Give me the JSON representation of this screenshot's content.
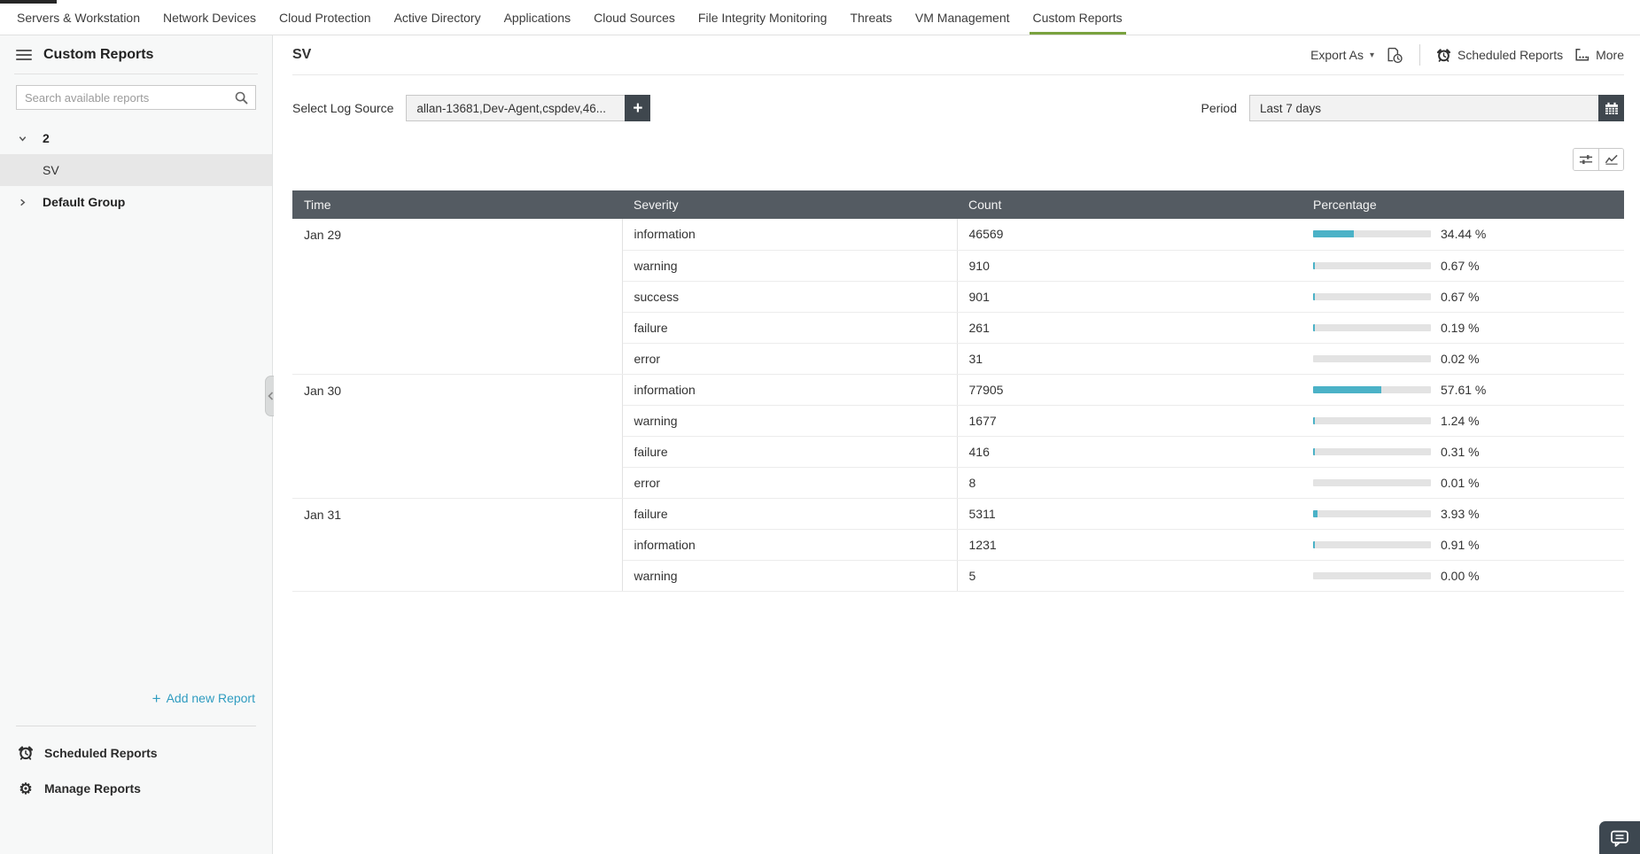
{
  "top_nav": {
    "tabs": [
      {
        "label": "Servers & Workstation",
        "active": false
      },
      {
        "label": "Network Devices",
        "active": false
      },
      {
        "label": "Cloud Protection",
        "active": false
      },
      {
        "label": "Active Directory",
        "active": false
      },
      {
        "label": "Applications",
        "active": false
      },
      {
        "label": "Cloud Sources",
        "active": false
      },
      {
        "label": "File Integrity Monitoring",
        "active": false
      },
      {
        "label": "Threats",
        "active": false
      },
      {
        "label": "VM Management",
        "active": false
      },
      {
        "label": "Custom Reports",
        "active": true
      }
    ]
  },
  "sidebar": {
    "title": "Custom Reports",
    "search": {
      "placeholder": "Search available reports"
    },
    "tree": [
      {
        "label": "2",
        "type": "group",
        "expanded": true,
        "selected": false
      },
      {
        "label": "SV",
        "type": "leaf",
        "expanded": false,
        "selected": true
      },
      {
        "label": "Default Group",
        "type": "group",
        "expanded": false,
        "selected": false
      }
    ],
    "add_new_report_label": "Add new Report",
    "footer_items": [
      {
        "label": "Scheduled Reports",
        "icon": "alarm-clock-icon"
      },
      {
        "label": "Manage Reports",
        "icon": "gear-icon"
      }
    ]
  },
  "report_header": {
    "title": "SV",
    "export_as_label": "Export As",
    "scheduled_reports_label": "Scheduled Reports",
    "more_label": "More"
  },
  "filters": {
    "log_source_label": "Select Log Source",
    "log_source_value": "allan-13681,Dev-Agent,cspdev,46...",
    "period_label": "Period",
    "period_value": "Last 7 days"
  },
  "table": {
    "columns": [
      "Time",
      "Severity",
      "Count",
      "Percentage"
    ],
    "groups": [
      {
        "time": "Jan 29",
        "rows": [
          {
            "severity": "information",
            "count": "46569",
            "percentage": "34.44 %",
            "pct": 34.44
          },
          {
            "severity": "warning",
            "count": "910",
            "percentage": "0.67 %",
            "pct": 0.67
          },
          {
            "severity": "success",
            "count": "901",
            "percentage": "0.67 %",
            "pct": 0.67
          },
          {
            "severity": "failure",
            "count": "261",
            "percentage": "0.19 %",
            "pct": 0.19
          },
          {
            "severity": "error",
            "count": "31",
            "percentage": "0.02 %",
            "pct": 0.02
          }
        ]
      },
      {
        "time": "Jan 30",
        "rows": [
          {
            "severity": "information",
            "count": "77905",
            "percentage": "57.61 %",
            "pct": 57.61
          },
          {
            "severity": "warning",
            "count": "1677",
            "percentage": "1.24 %",
            "pct": 1.24
          },
          {
            "severity": "failure",
            "count": "416",
            "percentage": "0.31 %",
            "pct": 0.31
          },
          {
            "severity": "error",
            "count": "8",
            "percentage": "0.01 %",
            "pct": 0.01
          }
        ]
      },
      {
        "time": "Jan 31",
        "rows": [
          {
            "severity": "failure",
            "count": "5311",
            "percentage": "3.93 %",
            "pct": 3.93
          },
          {
            "severity": "information",
            "count": "1231",
            "percentage": "0.91 %",
            "pct": 0.91
          },
          {
            "severity": "warning",
            "count": "5",
            "percentage": "0.00 %",
            "pct": 0.0
          }
        ]
      }
    ]
  },
  "colors": {
    "accent_green": "#7aa23f",
    "bar_fill": "#4bb2c7",
    "bar_track": "#e3e3e3",
    "table_header_bg": "#545b62",
    "link_blue": "#2f9cc0",
    "dark_button": "#3f474e"
  }
}
